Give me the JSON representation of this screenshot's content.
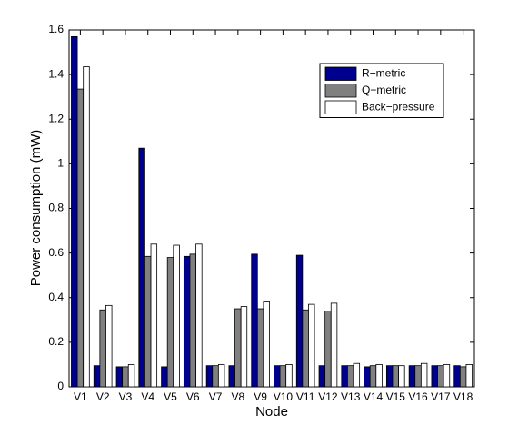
{
  "chart_data": {
    "type": "bar",
    "x_label": "Node",
    "y_label": "Power consumption (mW)",
    "categories": [
      "V1",
      "V2",
      "V3",
      "V4",
      "V5",
      "V6",
      "V7",
      "V8",
      "V9",
      "V10",
      "V11",
      "V12",
      "V13",
      "V14",
      "V15",
      "V16",
      "V17",
      "V18"
    ],
    "series": [
      {
        "name": "R−metric",
        "color": "#00008f",
        "values": [
          1.57,
          0.095,
          0.09,
          1.07,
          0.09,
          0.585,
          0.095,
          0.095,
          0.595,
          0.095,
          0.59,
          0.095,
          0.095,
          0.09,
          0.095,
          0.095,
          0.095,
          0.095
        ]
      },
      {
        "name": "Q−metric",
        "color": "#808080",
        "values": [
          1.335,
          0.345,
          0.09,
          0.585,
          0.58,
          0.595,
          0.095,
          0.35,
          0.35,
          0.095,
          0.345,
          0.34,
          0.095,
          0.095,
          0.095,
          0.095,
          0.095,
          0.09
        ]
      },
      {
        "name": "Back−pressure",
        "color": "#ffffff",
        "values": [
          1.435,
          0.365,
          0.1,
          0.64,
          0.635,
          0.64,
          0.1,
          0.36,
          0.385,
          0.1,
          0.37,
          0.375,
          0.105,
          0.1,
          0.095,
          0.105,
          0.1,
          0.1
        ]
      }
    ],
    "ylim": [
      0,
      1.6
    ],
    "yticks": [
      0,
      0.2,
      0.4,
      0.6,
      0.8,
      1,
      1.2,
      1.4,
      1.6
    ],
    "legend": "upper right"
  }
}
